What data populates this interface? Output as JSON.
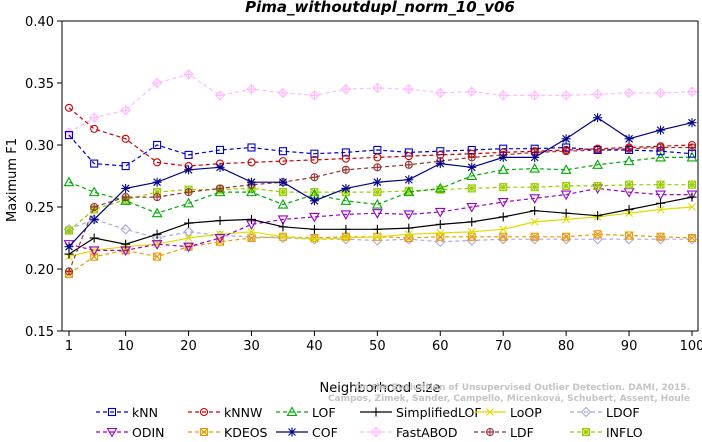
{
  "chart_data": {
    "type": "line",
    "title": "Pima_withoutdupl_norm_10_v06",
    "xlabel": "Neighborhood size",
    "ylabel": "Maximum F1",
    "xlim": [
      1,
      100
    ],
    "ylim": [
      0.15,
      0.4
    ],
    "x_ticks": [
      "1",
      "10",
      "20",
      "30",
      "40",
      "50",
      "60",
      "70",
      "80",
      "90",
      "100"
    ],
    "y_ticks": [
      "0.15",
      "0.20",
      "0.25",
      "0.30",
      "0.35",
      "0.40"
    ],
    "grid": false,
    "legend_position": "bottom",
    "x": [
      1,
      5,
      10,
      15,
      20,
      25,
      30,
      35,
      40,
      45,
      50,
      55,
      60,
      65,
      70,
      75,
      80,
      85,
      90,
      95,
      100
    ],
    "series": [
      {
        "name": "kNN",
        "color": "#0000cc",
        "marker": "square",
        "dash": "dash",
        "values": [
          0.308,
          0.285,
          0.283,
          0.3,
          0.292,
          0.296,
          0.298,
          0.295,
          0.293,
          0.294,
          0.296,
          0.294,
          0.295,
          0.296,
          0.297,
          0.297,
          0.298,
          0.296,
          0.296,
          0.295,
          0.293
        ]
      },
      {
        "name": "kNNW",
        "color": "#cc0000",
        "marker": "circle",
        "dash": "dash",
        "values": [
          0.33,
          0.313,
          0.305,
          0.286,
          0.283,
          0.285,
          0.286,
          0.287,
          0.288,
          0.289,
          0.29,
          0.291,
          0.292,
          0.293,
          0.294,
          0.295,
          0.296,
          0.297,
          0.298,
          0.299,
          0.3
        ]
      },
      {
        "name": "LOF",
        "color": "#00aa00",
        "marker": "triangle-up",
        "dash": "dash",
        "values": [
          0.27,
          0.262,
          0.255,
          0.245,
          0.253,
          0.262,
          0.262,
          0.252,
          0.26,
          0.255,
          0.252,
          0.262,
          0.265,
          0.275,
          0.28,
          0.281,
          0.28,
          0.284,
          0.287,
          0.29,
          0.29
        ]
      },
      {
        "name": "SimplifiedLOF",
        "color": "#000000",
        "marker": "plus",
        "dash": "solid",
        "values": [
          0.212,
          0.225,
          0.22,
          0.228,
          0.237,
          0.239,
          0.24,
          0.234,
          0.232,
          0.232,
          0.232,
          0.233,
          0.236,
          0.238,
          0.242,
          0.247,
          0.245,
          0.243,
          0.248,
          0.253,
          0.258
        ]
      },
      {
        "name": "LoOP",
        "color": "#dddd00",
        "marker": "x",
        "dash": "solid",
        "values": [
          0.21,
          0.215,
          0.218,
          0.22,
          0.225,
          0.228,
          0.23,
          0.226,
          0.224,
          0.225,
          0.226,
          0.228,
          0.229,
          0.23,
          0.232,
          0.238,
          0.24,
          0.242,
          0.245,
          0.248,
          0.25
        ]
      },
      {
        "name": "LDOF",
        "color": "#aaaadd",
        "marker": "diamond",
        "dash": "dash",
        "values": [
          0.232,
          0.24,
          0.232,
          0.225,
          0.23,
          0.227,
          0.226,
          0.225,
          0.224,
          0.224,
          0.223,
          0.224,
          0.222,
          0.223,
          0.224,
          0.224,
          0.224,
          0.224,
          0.224,
          0.224,
          0.224
        ]
      },
      {
        "name": "ODIN",
        "color": "#9900cc",
        "marker": "triangle-down",
        "dash": "dash",
        "values": [
          0.22,
          0.215,
          0.215,
          0.22,
          0.218,
          0.225,
          0.236,
          0.24,
          0.242,
          0.244,
          0.245,
          0.244,
          0.246,
          0.25,
          0.254,
          0.257,
          0.26,
          0.265,
          0.262,
          0.26,
          0.26
        ]
      },
      {
        "name": "KDEOS",
        "color": "#ee9900",
        "marker": "square-x",
        "dash": "dash",
        "values": [
          0.196,
          0.21,
          0.215,
          0.21,
          0.218,
          0.222,
          0.225,
          0.226,
          0.225,
          0.226,
          0.226,
          0.225,
          0.226,
          0.226,
          0.226,
          0.226,
          0.226,
          0.228,
          0.227,
          0.226,
          0.225
        ]
      },
      {
        "name": "COF",
        "color": "#000088",
        "marker": "asterisk",
        "dash": "solid",
        "values": [
          0.218,
          0.24,
          0.265,
          0.27,
          0.28,
          0.282,
          0.27,
          0.27,
          0.255,
          0.265,
          0.27,
          0.272,
          0.285,
          0.282,
          0.29,
          0.29,
          0.305,
          0.322,
          0.305,
          0.312,
          0.318
        ]
      },
      {
        "name": "FastABOD",
        "color": "#ffbbff",
        "marker": "diamond-plus",
        "dash": "dash",
        "values": [
          0.31,
          0.322,
          0.328,
          0.35,
          0.357,
          0.34,
          0.345,
          0.342,
          0.34,
          0.345,
          0.346,
          0.345,
          0.342,
          0.343,
          0.34,
          0.34,
          0.34,
          0.341,
          0.342,
          0.342,
          0.343
        ]
      },
      {
        "name": "LDF",
        "color": "#993333",
        "marker": "circle-plus",
        "dash": "dash",
        "values": [
          0.198,
          0.25,
          0.258,
          0.258,
          0.262,
          0.265,
          0.268,
          0.27,
          0.274,
          0.28,
          0.282,
          0.284,
          0.287,
          0.29,
          0.292,
          0.294,
          0.295,
          0.296,
          0.297,
          0.298,
          0.298
        ]
      },
      {
        "name": "INFLO",
        "color": "#99cc00",
        "marker": "square-star",
        "dash": "dash",
        "values": [
          0.231,
          0.248,
          0.256,
          0.262,
          0.264,
          0.264,
          0.265,
          0.262,
          0.262,
          0.262,
          0.262,
          0.263,
          0.264,
          0.265,
          0.266,
          0.266,
          0.267,
          0.267,
          0.268,
          0.268,
          0.268
        ]
      }
    ],
    "legend_order": [
      [
        "kNN",
        "kNNW",
        "LOF",
        "SimplifiedLOF",
        "LoOP",
        "LDOF"
      ],
      [
        "ODIN",
        "KDEOS",
        "COF",
        "FastABOD",
        "LDF",
        "INFLO"
      ]
    ]
  },
  "watermark": {
    "line1": "Campos, Zimek, Sander, Campello, Micenková, Schubert, Assent, Houle",
    "line2": "On the Evaluation of Unsupervised Outlier Detection. DAMI, 2015."
  }
}
